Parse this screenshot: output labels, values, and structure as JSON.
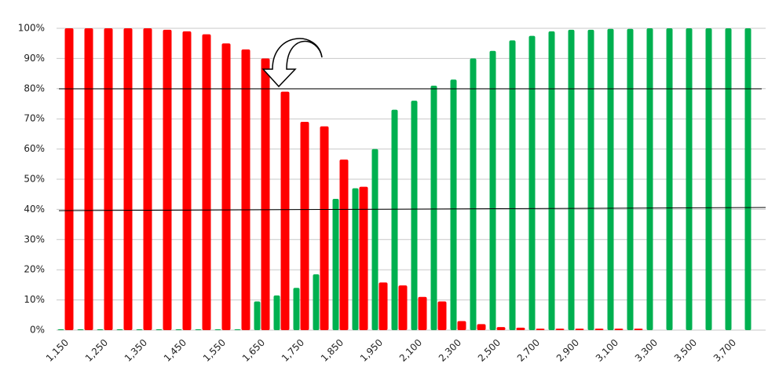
{
  "chart_data": {
    "type": "bar",
    "categories": [
      "1,150",
      null,
      "1,250",
      null,
      "1,350",
      null,
      "1,450",
      null,
      "1,550",
      null,
      "1,650",
      null,
      "1,750",
      null,
      "1,850",
      null,
      "1,950",
      null,
      "2,100",
      null,
      "2,300",
      null,
      "2,500",
      null,
      "2,700",
      null,
      "2,900",
      null,
      "3,100",
      null,
      "3,300",
      null,
      "3,500",
      null,
      "3,700",
      null
    ],
    "series": [
      {
        "color": "#00b050",
        "values": [
          0.3,
          0.3,
          0.3,
          0.3,
          0.3,
          0.3,
          0.3,
          0.3,
          0.3,
          0.3,
          9.5,
          11.5,
          14,
          18.5,
          43.5,
          47,
          60,
          73,
          76,
          81,
          83,
          90,
          92.5,
          96,
          97.5,
          99,
          99.5,
          99.5,
          99.8,
          99.8,
          100,
          100,
          100,
          100,
          100,
          100
        ]
      },
      {
        "color": "#ff0000",
        "values": [
          100,
          100,
          100,
          100,
          100,
          99.5,
          99,
          98,
          95,
          93,
          90,
          79,
          69,
          67.5,
          56.5,
          47.5,
          15.8,
          14.8,
          11,
          9.5,
          3,
          2,
          1,
          0.8,
          0.5,
          0.5,
          0.5,
          0.5,
          0.5,
          0.5,
          0,
          0,
          0,
          0,
          0,
          0
        ]
      }
    ],
    "ylim": [
      0,
      100
    ],
    "yticks": [
      {
        "value": 0,
        "label": "0%"
      },
      {
        "value": 10,
        "label": "10%"
      },
      {
        "value": 20,
        "label": "20%"
      },
      {
        "value": 30,
        "label": "30%"
      },
      {
        "value": 40,
        "label": "40%"
      },
      {
        "value": 50,
        "label": "50%"
      },
      {
        "value": 60,
        "label": "60%"
      },
      {
        "value": 70,
        "label": "70%"
      },
      {
        "value": 80,
        "label": "80%"
      },
      {
        "value": 90,
        "label": "90%"
      },
      {
        "value": 100,
        "label": "100%"
      }
    ],
    "grid": true
  }
}
